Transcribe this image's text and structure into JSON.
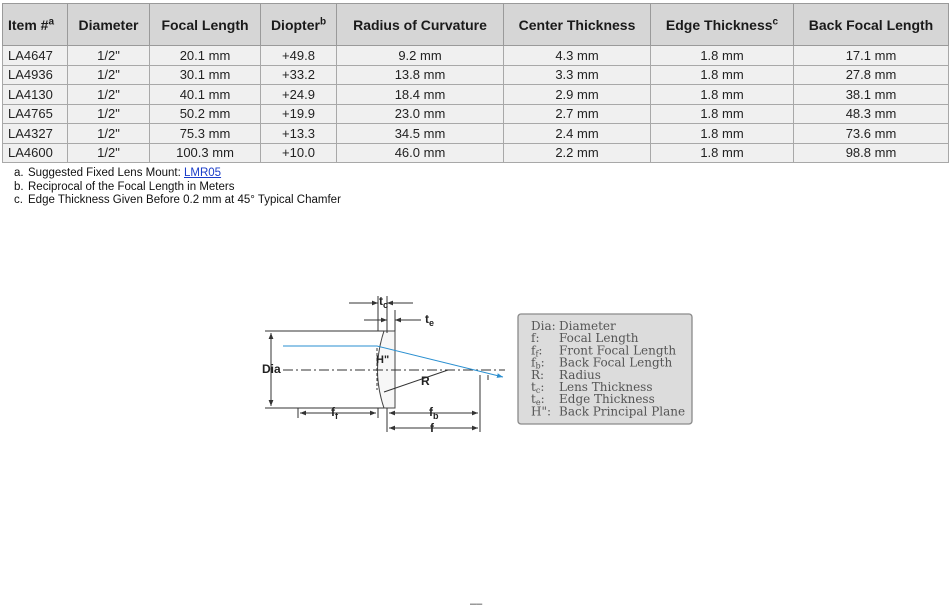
{
  "table": {
    "headers": [
      {
        "label": "Item #",
        "sup": "a"
      },
      {
        "label": "Diameter",
        "sup": ""
      },
      {
        "label": "Focal Length",
        "sup": ""
      },
      {
        "label": "Diopter",
        "sup": "b"
      },
      {
        "label": "Radius of Curvature",
        "sup": ""
      },
      {
        "label": "Center Thickness",
        "sup": ""
      },
      {
        "label": "Edge Thickness",
        "sup": "c"
      },
      {
        "label": "Back Focal Length",
        "sup": ""
      }
    ],
    "rows": [
      [
        "LA4647",
        "1/2\"",
        "20.1 mm",
        "+49.8",
        "9.2 mm",
        "4.3 mm",
        "1.8 mm",
        "17.1 mm"
      ],
      [
        "LA4936",
        "1/2\"",
        "30.1 mm",
        "+33.2",
        "13.8 mm",
        "3.3 mm",
        "1.8 mm",
        "27.8 mm"
      ],
      [
        "LA4130",
        "1/2\"",
        "40.1 mm",
        "+24.9",
        "18.4 mm",
        "2.9 mm",
        "1.8 mm",
        "38.1 mm"
      ],
      [
        "LA4765",
        "1/2\"",
        "50.2 mm",
        "+19.9",
        "23.0 mm",
        "2.7 mm",
        "1.8 mm",
        "48.3 mm"
      ],
      [
        "LA4327",
        "1/2\"",
        "75.3 mm",
        "+13.3",
        "34.5 mm",
        "2.4 mm",
        "1.8 mm",
        "73.6 mm"
      ],
      [
        "LA4600",
        "1/2\"",
        "100.3 mm",
        "+10.0",
        "46.0 mm",
        "2.2 mm",
        "1.8 mm",
        "98.8 mm"
      ]
    ]
  },
  "notes": {
    "a": {
      "mark": "a.",
      "text": "Suggested Fixed Lens Mount: ",
      "link": "LMR05"
    },
    "b": {
      "mark": "b.",
      "text": "Reciprocal of the Focal Length in Meters"
    },
    "c": {
      "mark": "c.",
      "text": "Edge Thickness Given Before 0.2 mm at 45° Typical Chamfer"
    }
  },
  "diagram": {
    "labels": {
      "dia": "Dia",
      "tc_main": "t",
      "tc_sub": "c",
      "te_main": "t",
      "te_sub": "e",
      "h": "H\"",
      "r": "R",
      "ff_main": "f",
      "ff_sub": "f",
      "fb_main": "f",
      "fb_sub": "b",
      "f": "f"
    },
    "legend": [
      {
        "key": "Dia:",
        "key_sub": "",
        "value": "Diameter"
      },
      {
        "key": "f:",
        "key_sub": "",
        "value": "Focal Length"
      },
      {
        "key": "f",
        "key_sub": "f",
        "value": "Front Focal Length"
      },
      {
        "key": "f",
        "key_sub": "b",
        "value": "Back Focal Length"
      },
      {
        "key": "R:",
        "key_sub": "",
        "value": "Radius"
      },
      {
        "key": "t",
        "key_sub": "c",
        "value": "Lens Thickness"
      },
      {
        "key": "t",
        "key_sub": "e",
        "value": "Edge Thickness"
      },
      {
        "key": "H\":",
        "key_sub": "",
        "value": "Back Principal Plane"
      }
    ],
    "ray_color": "#2a8fd0"
  },
  "footer_mark": "––"
}
